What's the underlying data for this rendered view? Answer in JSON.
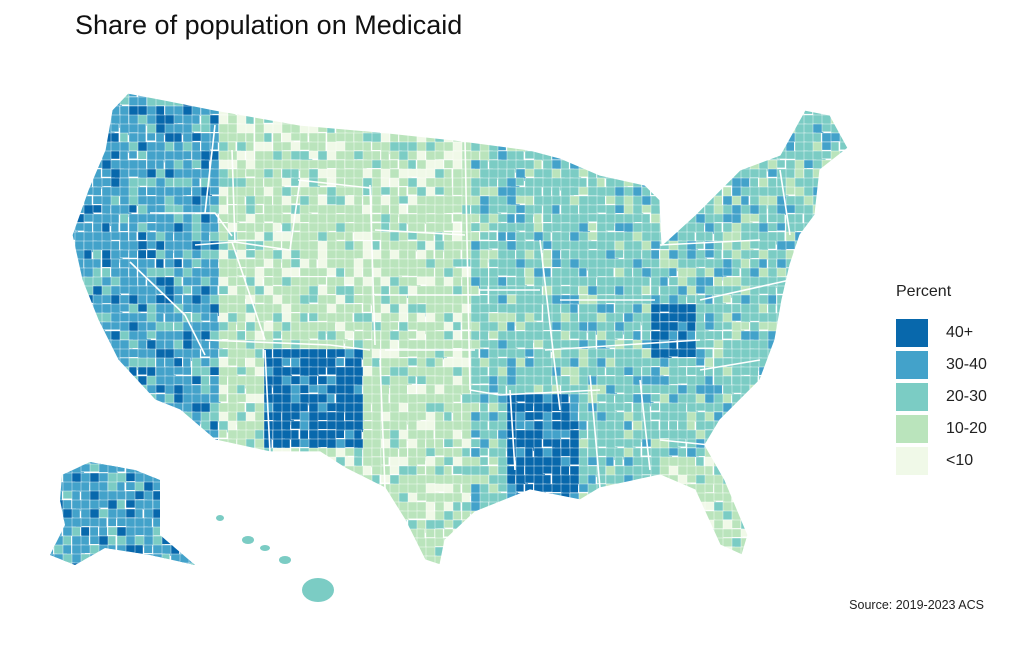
{
  "title": "Share of population on Medicaid",
  "caption": "Source: 2019-2023 ACS",
  "legend": {
    "title": "Percent",
    "items": [
      {
        "label": "40+",
        "color": "#0868ac"
      },
      {
        "label": "30-40",
        "color": "#43a2ca"
      },
      {
        "label": "20-30",
        "color": "#7bccc4"
      },
      {
        "label": "10-20",
        "color": "#bae4bc"
      },
      {
        "label": "<10",
        "color": "#f0f9e8"
      }
    ]
  },
  "map": {
    "type": "choropleth",
    "unit": "county",
    "variable": "percent of population on Medicaid",
    "border_color": "#ffffff",
    "predominant_class_by_region": {
      "west_coast": "30-40",
      "mountain_west": "10-20",
      "great_plains": "10-20",
      "midwest": "20-30",
      "northeast": "20-30",
      "southeast": "20-30",
      "appalachia": "40+",
      "new_mexico": "40+",
      "mississippi_delta": "40+",
      "texas": "10-20",
      "florida": "10-20",
      "alaska": "30-40",
      "hawaii": "20-30"
    }
  }
}
